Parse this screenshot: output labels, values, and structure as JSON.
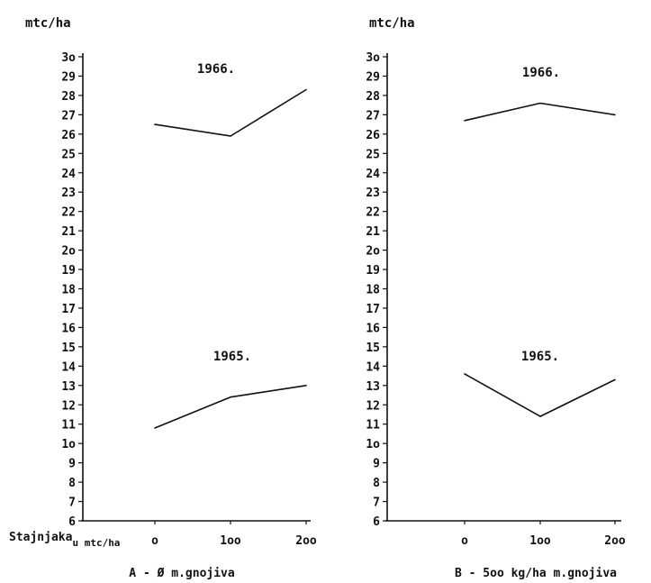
{
  "chart_data": [
    {
      "type": "line",
      "ylabel": "mtc/ha",
      "xlabel": "Stajnjaka u mtc/ha",
      "caption": "A - Ø m.gnojiva",
      "x": [
        0,
        100,
        200
      ],
      "x_tick_labels": [
        "o",
        "1oo",
        "2oo"
      ],
      "ylim": [
        6,
        30
      ],
      "y_ticks": [
        6,
        7,
        8,
        9,
        10,
        11,
        12,
        13,
        14,
        15,
        16,
        17,
        18,
        19,
        20,
        21,
        22,
        23,
        24,
        25,
        26,
        27,
        28,
        29,
        30
      ],
      "y_tick_labels": [
        "6",
        "7",
        "8",
        "9",
        "1o",
        "11",
        "12",
        "13",
        "14",
        "15",
        "16",
        "17",
        "18",
        "19",
        "2o",
        "21",
        "22",
        "23",
        "24",
        "25",
        "26",
        "27",
        "28",
        "29",
        "3o"
      ],
      "series": [
        {
          "name": "1966.",
          "values": [
            26.5,
            25.9,
            28.3
          ]
        },
        {
          "name": "1965.",
          "values": [
            10.8,
            12.4,
            13.0
          ]
        }
      ]
    },
    {
      "type": "line",
      "ylabel": "mtc/ha",
      "xlabel": "",
      "caption": "B - 5oo kg/ha m.gnojiva",
      "x": [
        0,
        100,
        200
      ],
      "x_tick_labels": [
        "o",
        "1oo",
        "2oo"
      ],
      "ylim": [
        6,
        30
      ],
      "y_ticks": [
        6,
        7,
        8,
        9,
        10,
        11,
        12,
        13,
        14,
        15,
        16,
        17,
        18,
        19,
        20,
        21,
        22,
        23,
        24,
        25,
        26,
        27,
        28,
        29,
        30
      ],
      "y_tick_labels": [
        "6",
        "7",
        "8",
        "9",
        "1o",
        "11",
        "12",
        "13",
        "14",
        "15",
        "16",
        "17",
        "18",
        "19",
        "2o",
        "21",
        "22",
        "23",
        "24",
        "25",
        "26",
        "27",
        "28",
        "29",
        "3o"
      ],
      "series": [
        {
          "name": "1966.",
          "values": [
            26.7,
            27.6,
            27.0
          ]
        },
        {
          "name": "1965.",
          "values": [
            13.6,
            11.4,
            13.3
          ]
        }
      ]
    }
  ]
}
